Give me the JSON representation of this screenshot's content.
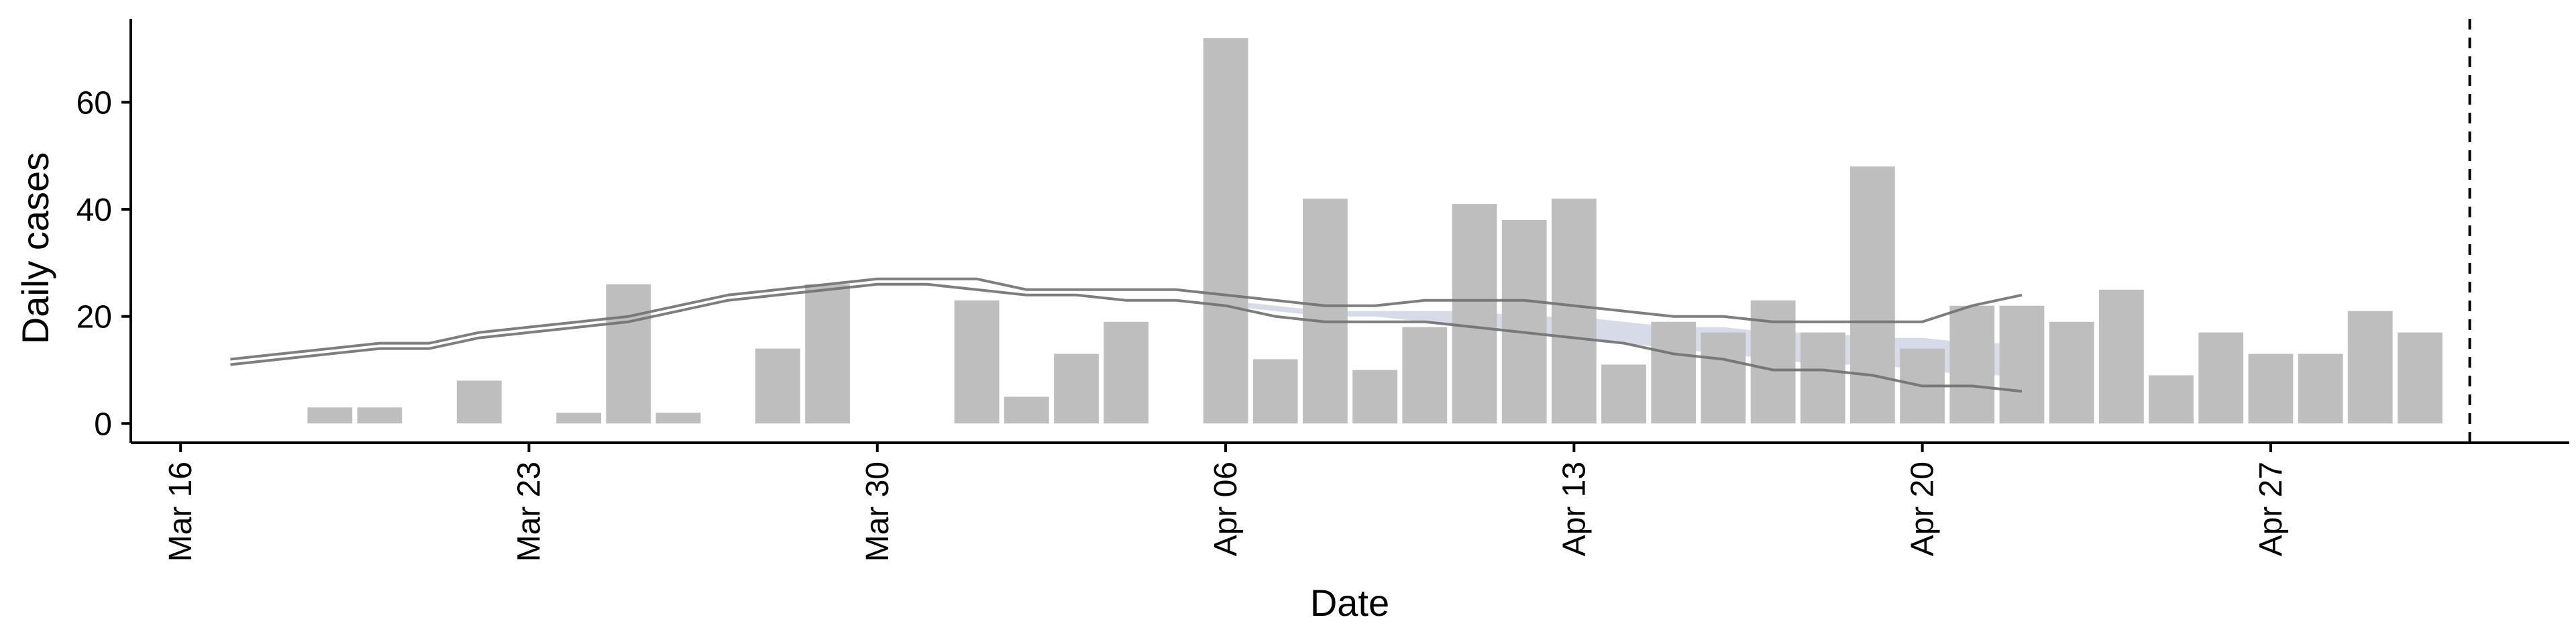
{
  "chart_data": {
    "type": "bar",
    "title": "",
    "xlabel": "Date",
    "ylabel": "Daily cases",
    "x_domain": [
      "2020-03-15",
      "2020-05-03"
    ],
    "ylim": [
      -3.6,
      75.6
    ],
    "x_ticks": [
      {
        "date": "2020-03-16",
        "label": "Mar 16"
      },
      {
        "date": "2020-03-23",
        "label": "Mar 23"
      },
      {
        "date": "2020-03-30",
        "label": "Mar 30"
      },
      {
        "date": "2020-04-06",
        "label": "Apr 06"
      },
      {
        "date": "2020-04-13",
        "label": "Apr 13"
      },
      {
        "date": "2020-04-20",
        "label": "Apr 20"
      },
      {
        "date": "2020-04-27",
        "label": "Apr 27"
      }
    ],
    "y_ticks": [
      0,
      20,
      40,
      60
    ],
    "grid": false,
    "legend": "none",
    "bar_color": "#bebebe",
    "bars": [
      {
        "date": "2020-03-19",
        "value": 3
      },
      {
        "date": "2020-03-20",
        "value": 3
      },
      {
        "date": "2020-03-22",
        "value": 8
      },
      {
        "date": "2020-03-24",
        "value": 2
      },
      {
        "date": "2020-03-25",
        "value": 26
      },
      {
        "date": "2020-03-26",
        "value": 2
      },
      {
        "date": "2020-03-28",
        "value": 14
      },
      {
        "date": "2020-03-29",
        "value": 26
      },
      {
        "date": "2020-04-01",
        "value": 23
      },
      {
        "date": "2020-04-02",
        "value": 5
      },
      {
        "date": "2020-04-03",
        "value": 13
      },
      {
        "date": "2020-04-04",
        "value": 19
      },
      {
        "date": "2020-04-06",
        "value": 72
      },
      {
        "date": "2020-04-07",
        "value": 12
      },
      {
        "date": "2020-04-08",
        "value": 42
      },
      {
        "date": "2020-04-09",
        "value": 10
      },
      {
        "date": "2020-04-10",
        "value": 18
      },
      {
        "date": "2020-04-11",
        "value": 41
      },
      {
        "date": "2020-04-12",
        "value": 38
      },
      {
        "date": "2020-04-13",
        "value": 42
      },
      {
        "date": "2020-04-14",
        "value": 11
      },
      {
        "date": "2020-04-15",
        "value": 19
      },
      {
        "date": "2020-04-16",
        "value": 17
      },
      {
        "date": "2020-04-17",
        "value": 23
      },
      {
        "date": "2020-04-18",
        "value": 17
      },
      {
        "date": "2020-04-19",
        "value": 48
      },
      {
        "date": "2020-04-20",
        "value": 14
      },
      {
        "date": "2020-04-21",
        "value": 22
      },
      {
        "date": "2020-04-22",
        "value": 22
      },
      {
        "date": "2020-04-23",
        "value": 19
      },
      {
        "date": "2020-04-24",
        "value": 25
      },
      {
        "date": "2020-04-25",
        "value": 9
      },
      {
        "date": "2020-04-26",
        "value": 17
      },
      {
        "date": "2020-04-27",
        "value": 13
      },
      {
        "date": "2020-04-28",
        "value": 13
      },
      {
        "date": "2020-04-29",
        "value": 21
      },
      {
        "date": "2020-04-30",
        "value": 17
      }
    ],
    "band_lines": [
      {
        "color": "#707070",
        "x": [
          "2020-03-17",
          "2020-03-18",
          "2020-03-19",
          "2020-03-20",
          "2020-03-21",
          "2020-03-22",
          "2020-03-23",
          "2020-03-24",
          "2020-03-25",
          "2020-03-26",
          "2020-03-27",
          "2020-03-28",
          "2020-03-29",
          "2020-03-30",
          "2020-03-31",
          "2020-04-01",
          "2020-04-02",
          "2020-04-03",
          "2020-04-04",
          "2020-04-05",
          "2020-04-06",
          "2020-04-07",
          "2020-04-08",
          "2020-04-09",
          "2020-04-10",
          "2020-04-11",
          "2020-04-12",
          "2020-04-13",
          "2020-04-14",
          "2020-04-15",
          "2020-04-16",
          "2020-04-17",
          "2020-04-18",
          "2020-04-19",
          "2020-04-20",
          "2020-04-21",
          "2020-04-22"
        ],
        "upper": [
          12,
          13,
          14,
          15,
          15,
          17,
          18,
          19,
          20,
          22,
          24,
          25,
          26,
          27,
          27,
          27,
          25,
          25,
          25,
          25,
          24,
          23,
          22,
          22,
          23,
          23,
          23,
          22,
          21,
          20,
          20,
          19,
          19,
          19,
          19,
          22,
          24
        ],
        "lower": [
          11,
          12,
          13,
          14,
          14,
          16,
          17,
          18,
          19,
          21,
          23,
          24,
          25,
          26,
          26,
          25,
          24,
          24,
          23,
          23,
          22,
          20,
          19,
          19,
          19,
          18,
          17,
          16,
          15,
          13,
          12,
          10,
          10,
          9,
          7,
          7,
          6
        ]
      }
    ],
    "shaded_band": {
      "color": "#b7bdd4",
      "x": [
        "2020-04-06",
        "2020-04-07",
        "2020-04-08",
        "2020-04-09",
        "2020-04-10",
        "2020-04-11",
        "2020-04-12",
        "2020-04-13",
        "2020-04-14",
        "2020-04-15",
        "2020-04-16",
        "2020-04-17",
        "2020-04-18",
        "2020-04-19",
        "2020-04-20",
        "2020-04-21",
        "2020-04-22"
      ],
      "upper": [
        23,
        22,
        21,
        21,
        21,
        21,
        20,
        20,
        19,
        18,
        18,
        17,
        17,
        16,
        16,
        15,
        15
      ],
      "lower": [
        22,
        21,
        20,
        20,
        19,
        18,
        17,
        16,
        15,
        14,
        13,
        12,
        11,
        11,
        10,
        9,
        9
      ]
    },
    "vline": {
      "date": "2020-05-01",
      "style": "dashed",
      "color": "#000000"
    }
  }
}
